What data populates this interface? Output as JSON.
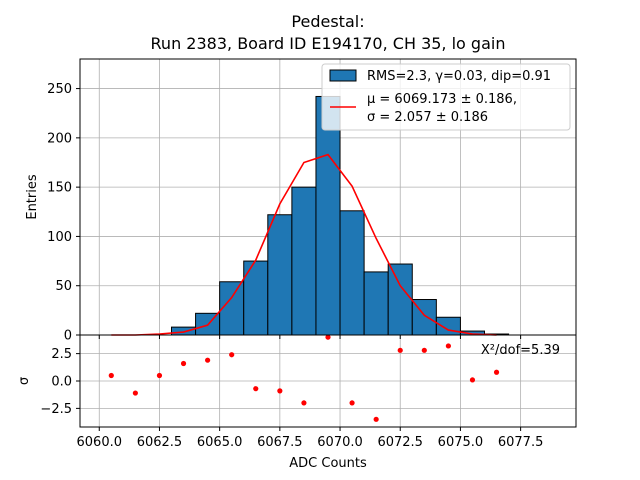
{
  "chart_data": {
    "type": "bar",
    "title_line1": "Pedestal:",
    "title_line2": "Run 2383, Board ID E194170, CH 35, lo gain",
    "xlabel": "ADC Counts",
    "ylabel_top": "Entries",
    "ylabel_bottom": "σ",
    "xlim": [
      6059.2,
      6079.8
    ],
    "ylim_top": [
      0,
      280
    ],
    "ylim_bottom": [
      -4.2,
      4.2
    ],
    "x_ticks": [
      6060.0,
      6062.5,
      6065.0,
      6067.5,
      6070.0,
      6072.5,
      6075.0,
      6077.5
    ],
    "x_tick_labels": [
      "6060.0",
      "6062.5",
      "6065.0",
      "6067.5",
      "6070.0",
      "6072.5",
      "6075.0",
      "6077.5"
    ],
    "y_ticks_top": [
      0,
      50,
      100,
      150,
      200,
      250
    ],
    "y_tick_labels_top": [
      "0",
      "50",
      "100",
      "150",
      "200",
      "250"
    ],
    "y_ticks_bottom": [
      -2.5,
      0.0,
      2.5
    ],
    "y_tick_labels_bottom": [
      "−2.5",
      "0.0",
      "2.5"
    ],
    "histogram": {
      "bin_left_edges": [
        6060,
        6061,
        6062,
        6063,
        6064,
        6065,
        6066,
        6067,
        6068,
        6069,
        6070,
        6071,
        6072,
        6073,
        6074,
        6075,
        6076
      ],
      "bin_width": 1,
      "counts": [
        0,
        0,
        0,
        8,
        22,
        54,
        75,
        122,
        150,
        242,
        126,
        64,
        72,
        36,
        18,
        4,
        1
      ],
      "color": "#1f77b4",
      "edge_color": "#000000"
    },
    "fit": {
      "x": [
        6060.5,
        6061.5,
        6062.5,
        6063.5,
        6064.5,
        6065.5,
        6066.5,
        6067.5,
        6068.5,
        6069.5,
        6070.5,
        6071.5,
        6072.5,
        6073.5,
        6074.5,
        6075.5,
        6076.5
      ],
      "y": [
        0,
        0,
        1,
        3,
        10,
        38,
        76,
        133,
        175,
        183,
        151,
        98,
        50,
        20,
        5,
        1,
        0
      ],
      "color": "#ff0000"
    },
    "residuals": {
      "x": [
        6060.5,
        6061.5,
        6062.5,
        6063.5,
        6064.5,
        6065.5,
        6066.5,
        6067.5,
        6068.5,
        6069.5,
        6070.5,
        6071.5,
        6072.5,
        6073.5,
        6074.5,
        6075.5,
        6076.5
      ],
      "y": [
        0.5,
        -1.1,
        0.5,
        1.6,
        1.9,
        2.4,
        -0.7,
        -0.9,
        -2.0,
        4.0,
        -2.0,
        -3.5,
        2.8,
        2.8,
        3.2,
        0.1,
        0.8
      ],
      "color": "#ff0000"
    },
    "legend": {
      "position": "top-right",
      "hist_label": "RMS=2.3, γ=0.03, dip=0.91",
      "fit_label_line1": "μ = 6069.173 ± 0.186,",
      "fit_label_line2": "σ = 2.057 ± 0.186"
    },
    "chi2_label": "X²/dof=5.39",
    "grid": true
  }
}
